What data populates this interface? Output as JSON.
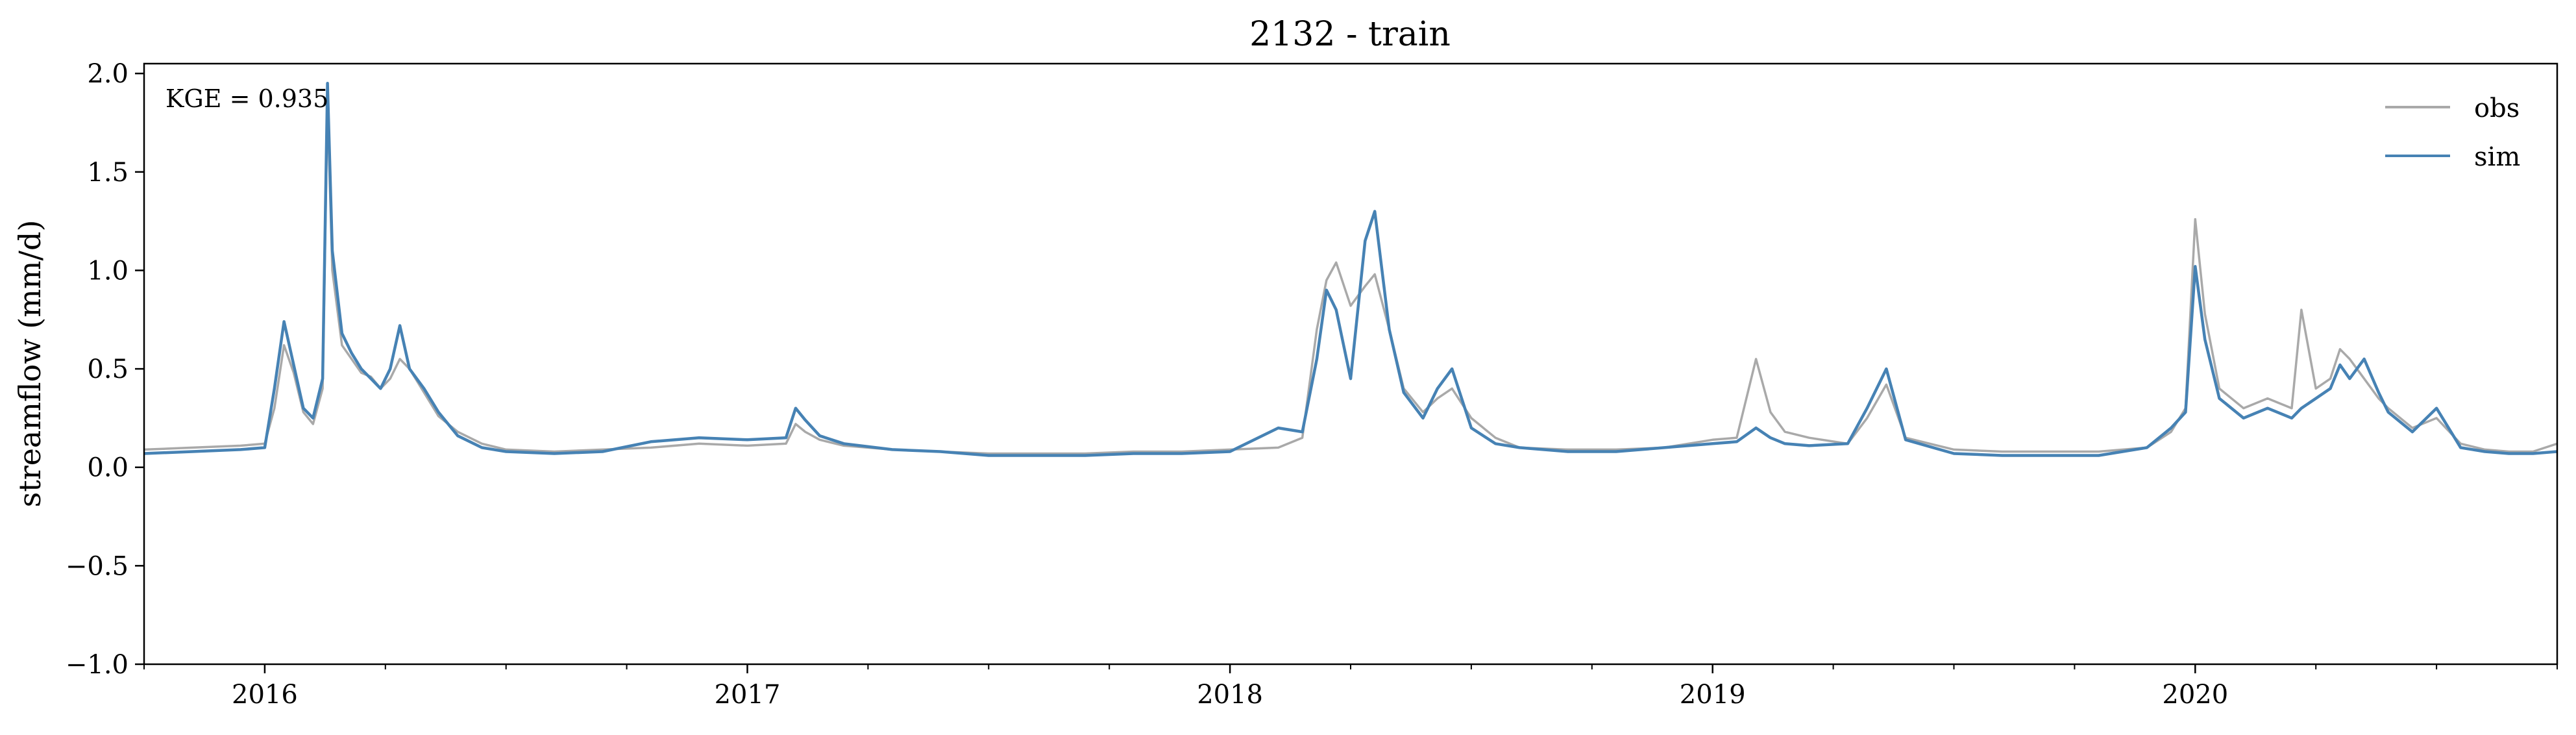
{
  "chart_data": {
    "type": "line",
    "title": "2132 - train",
    "xlabel": "",
    "ylabel": "streamflow (mm/d)",
    "ylim": [
      -1.0,
      2.05
    ],
    "xlim": [
      2015.75,
      2020.75
    ],
    "yticks": [
      -1.0,
      -0.5,
      0.0,
      0.5,
      1.0,
      1.5,
      2.0
    ],
    "ytick_labels": [
      "−1.0",
      "−0.5",
      "0.0",
      "0.5",
      "1.0",
      "1.5",
      "2.0"
    ],
    "xticks": [
      2016,
      2017,
      2018,
      2019,
      2020
    ],
    "xtick_labels": [
      "2016",
      "2017",
      "2018",
      "2019",
      "2020"
    ],
    "grid": false,
    "legend_position": "top-right",
    "annotation": "KGE = 0.935",
    "series": [
      {
        "name": "obs",
        "color": "#a9a9a9",
        "x": [
          2015.75,
          2015.85,
          2015.95,
          2016.0,
          2016.02,
          2016.04,
          2016.06,
          2016.08,
          2016.1,
          2016.12,
          2016.13,
          2016.14,
          2016.16,
          2016.18,
          2016.2,
          2016.22,
          2016.24,
          2016.26,
          2016.28,
          2016.3,
          2016.33,
          2016.36,
          2016.4,
          2016.45,
          2016.5,
          2016.6,
          2016.7,
          2016.8,
          2016.9,
          2017.0,
          2017.08,
          2017.1,
          2017.12,
          2017.15,
          2017.2,
          2017.3,
          2017.4,
          2017.5,
          2017.6,
          2017.7,
          2017.8,
          2017.9,
          2018.0,
          2018.1,
          2018.15,
          2018.18,
          2018.2,
          2018.22,
          2018.25,
          2018.28,
          2018.3,
          2018.33,
          2018.36,
          2018.4,
          2018.43,
          2018.46,
          2018.5,
          2018.55,
          2018.6,
          2018.7,
          2018.8,
          2018.9,
          2019.0,
          2019.05,
          2019.09,
          2019.12,
          2019.15,
          2019.2,
          2019.28,
          2019.32,
          2019.36,
          2019.4,
          2019.5,
          2019.6,
          2019.7,
          2019.8,
          2019.9,
          2019.95,
          2019.98,
          2020.0,
          2020.02,
          2020.05,
          2020.1,
          2020.15,
          2020.2,
          2020.22,
          2020.25,
          2020.28,
          2020.3,
          2020.32,
          2020.35,
          2020.38,
          2020.4,
          2020.45,
          2020.5,
          2020.55,
          2020.6,
          2020.65,
          2020.7,
          2020.75
        ],
        "y": [
          0.09,
          0.1,
          0.11,
          0.12,
          0.3,
          0.62,
          0.48,
          0.28,
          0.22,
          0.4,
          1.85,
          1.0,
          0.62,
          0.55,
          0.48,
          0.46,
          0.4,
          0.45,
          0.55,
          0.5,
          0.38,
          0.26,
          0.18,
          0.12,
          0.09,
          0.08,
          0.09,
          0.1,
          0.12,
          0.11,
          0.12,
          0.22,
          0.18,
          0.14,
          0.11,
          0.09,
          0.08,
          0.07,
          0.07,
          0.07,
          0.08,
          0.08,
          0.09,
          0.1,
          0.15,
          0.7,
          0.95,
          1.04,
          0.82,
          0.92,
          0.98,
          0.7,
          0.4,
          0.28,
          0.35,
          0.4,
          0.25,
          0.15,
          0.1,
          0.09,
          0.09,
          0.1,
          0.14,
          0.15,
          0.55,
          0.28,
          0.18,
          0.15,
          0.12,
          0.25,
          0.42,
          0.15,
          0.09,
          0.08,
          0.08,
          0.08,
          0.1,
          0.18,
          0.3,
          1.26,
          0.78,
          0.4,
          0.3,
          0.35,
          0.3,
          0.8,
          0.4,
          0.45,
          0.6,
          0.55,
          0.45,
          0.35,
          0.3,
          0.2,
          0.25,
          0.12,
          0.09,
          0.08,
          0.08,
          0.12
        ]
      },
      {
        "name": "sim",
        "color": "#4682b4",
        "x": [
          2015.75,
          2015.85,
          2015.95,
          2016.0,
          2016.02,
          2016.04,
          2016.06,
          2016.08,
          2016.1,
          2016.12,
          2016.13,
          2016.14,
          2016.16,
          2016.18,
          2016.2,
          2016.22,
          2016.24,
          2016.26,
          2016.28,
          2016.3,
          2016.33,
          2016.36,
          2016.4,
          2016.45,
          2016.5,
          2016.6,
          2016.7,
          2016.8,
          2016.9,
          2017.0,
          2017.08,
          2017.1,
          2017.12,
          2017.15,
          2017.2,
          2017.3,
          2017.4,
          2017.5,
          2017.6,
          2017.7,
          2017.8,
          2017.9,
          2018.0,
          2018.1,
          2018.15,
          2018.18,
          2018.2,
          2018.22,
          2018.25,
          2018.28,
          2018.3,
          2018.33,
          2018.36,
          2018.4,
          2018.43,
          2018.46,
          2018.5,
          2018.55,
          2018.6,
          2018.7,
          2018.8,
          2018.9,
          2019.0,
          2019.05,
          2019.09,
          2019.12,
          2019.15,
          2019.2,
          2019.28,
          2019.32,
          2019.36,
          2019.4,
          2019.5,
          2019.6,
          2019.7,
          2019.8,
          2019.9,
          2019.95,
          2019.98,
          2020.0,
          2020.02,
          2020.05,
          2020.1,
          2020.15,
          2020.2,
          2020.22,
          2020.25,
          2020.28,
          2020.3,
          2020.32,
          2020.35,
          2020.38,
          2020.4,
          2020.45,
          2020.5,
          2020.55,
          2020.6,
          2020.65,
          2020.7,
          2020.75
        ],
        "y": [
          0.07,
          0.08,
          0.09,
          0.1,
          0.4,
          0.74,
          0.52,
          0.3,
          0.25,
          0.45,
          1.95,
          1.1,
          0.68,
          0.58,
          0.5,
          0.45,
          0.4,
          0.5,
          0.72,
          0.5,
          0.4,
          0.28,
          0.16,
          0.1,
          0.08,
          0.07,
          0.08,
          0.13,
          0.15,
          0.14,
          0.15,
          0.3,
          0.24,
          0.16,
          0.12,
          0.09,
          0.08,
          0.06,
          0.06,
          0.06,
          0.07,
          0.07,
          0.08,
          0.2,
          0.18,
          0.55,
          0.9,
          0.8,
          0.45,
          1.15,
          1.3,
          0.7,
          0.38,
          0.25,
          0.4,
          0.5,
          0.2,
          0.12,
          0.1,
          0.08,
          0.08,
          0.1,
          0.12,
          0.13,
          0.2,
          0.15,
          0.12,
          0.11,
          0.12,
          0.3,
          0.5,
          0.14,
          0.07,
          0.06,
          0.06,
          0.06,
          0.1,
          0.2,
          0.28,
          1.02,
          0.65,
          0.35,
          0.25,
          0.3,
          0.25,
          0.3,
          0.35,
          0.4,
          0.52,
          0.45,
          0.55,
          0.38,
          0.28,
          0.18,
          0.3,
          0.1,
          0.08,
          0.07,
          0.07,
          0.08
        ]
      }
    ]
  }
}
